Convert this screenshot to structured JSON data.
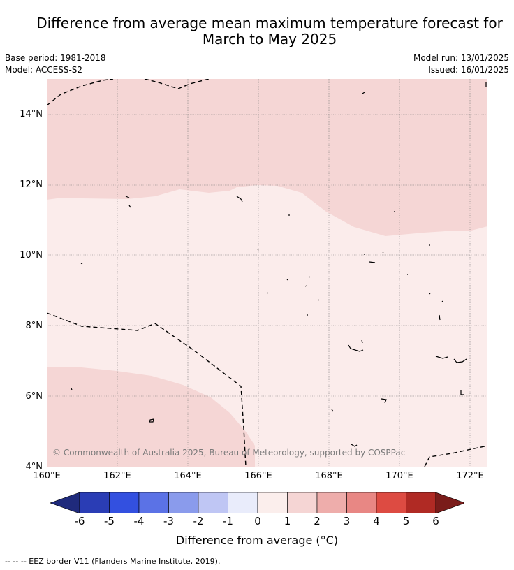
{
  "title_line1": "Difference from average mean maximum temperature forecast for",
  "title_line2": "March to May 2025",
  "base_period": "Base period: 1981-2018",
  "model": "Model: ACCESS-S2",
  "model_run": "Model run: 13/01/2025",
  "issued": "Issued: 16/01/2025",
  "lat_labels": [
    "14°N",
    "12°N",
    "10°N",
    "8°N",
    "6°N",
    "4°N"
  ],
  "lon_labels": [
    "160°E",
    "162°E",
    "164°E",
    "166°E",
    "168°E",
    "170°E",
    "172°E"
  ],
  "copyright": "© Commonwealth of Australia 2025, Bureau of Meteorology, supported by COSPPac",
  "colorbar": {
    "ticks": [
      "-6",
      "-5",
      "-4",
      "-3",
      "-2",
      "-1",
      "0",
      "1",
      "2",
      "3",
      "4",
      "5",
      "6"
    ],
    "colors": [
      "#1f2a7c",
      "#2a3db5",
      "#3350e0",
      "#5b72e6",
      "#8a9bec",
      "#bfc6f4",
      "#e9ecfb",
      "#fbeeec",
      "#f5d5d4",
      "#eeadab",
      "#e88784",
      "#dd4b42",
      "#b02a24",
      "#7a1c1a"
    ],
    "title": "Difference from average (°C)"
  },
  "footnote": "--  --  -- EEZ border V11 (Flanders Marine Institute, 2019)."
}
